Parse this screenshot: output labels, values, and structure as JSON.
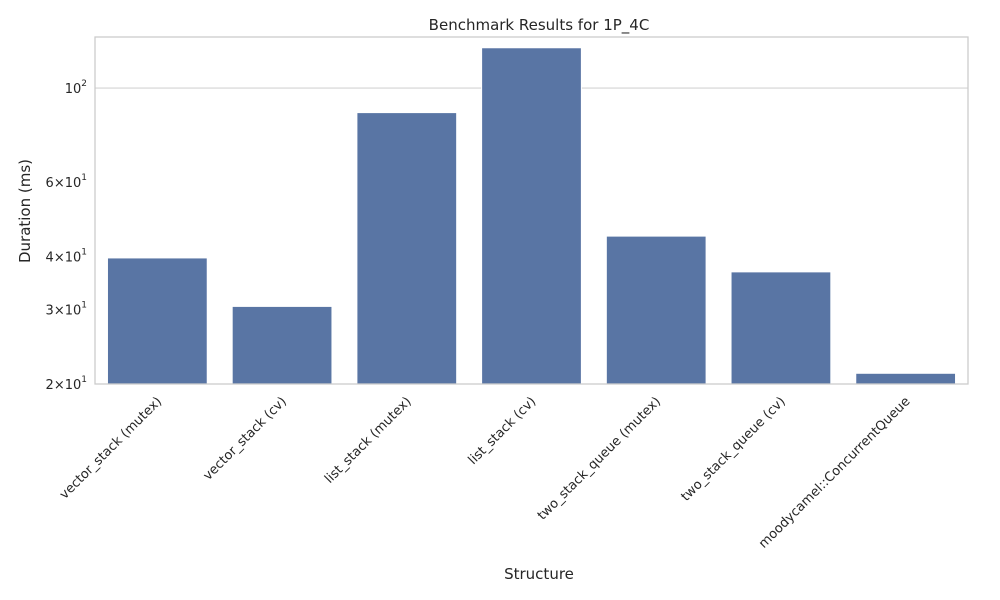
{
  "chart_data": {
    "type": "bar",
    "title": "Benchmark Results for 1P_4C",
    "xlabel": "Structure",
    "ylabel": "Duration (ms)",
    "yscale": "log",
    "ylim": [
      20,
      132
    ],
    "grid": "horizontal",
    "legend": "none",
    "categories": [
      "vector_stack (mutex)",
      "vector_stack (cv)",
      "list_stack (mutex)",
      "list_stack (cv)",
      "two_stack_queue (mutex)",
      "two_stack_queue (cv)",
      "moodycamel::ConcurrentQueue"
    ],
    "values": [
      39.7,
      30.5,
      87.5,
      124.5,
      44.7,
      36.8,
      21.2
    ],
    "yticks": [
      {
        "value": 20,
        "mantissa": "2",
        "base": "10",
        "exp": "1"
      },
      {
        "value": 30,
        "mantissa": "3",
        "base": "10",
        "exp": "1"
      },
      {
        "value": 40,
        "mantissa": "4",
        "base": "10",
        "exp": "1"
      },
      {
        "value": 60,
        "mantissa": "6",
        "base": "10",
        "exp": "1"
      },
      {
        "value": 100,
        "mantissa": "",
        "base": "10",
        "exp": "2"
      }
    ],
    "colors": {
      "bar": "#5975a4",
      "bar_edge": "#ffffff",
      "grid": "#d3d3d3",
      "frame": "#cccccc"
    }
  }
}
